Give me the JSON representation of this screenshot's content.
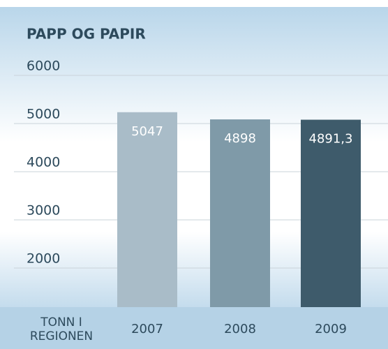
{
  "chart_data": {
    "type": "bar",
    "title": "PAPP OG PAPIR",
    "x_label": "TONN I REGIONEN",
    "categories": [
      "2007",
      "2008",
      "2009"
    ],
    "values": [
      5047,
      4898,
      4891.3
    ],
    "value_labels": [
      "5047",
      "4898",
      "4891,3"
    ],
    "colors": [
      "#a9bcc8",
      "#7f9aa8",
      "#3e5b6b"
    ],
    "ylim": [
      1000,
      6000
    ],
    "yticks": [
      2000,
      3000,
      4000,
      5000,
      6000
    ],
    "grid": true
  }
}
